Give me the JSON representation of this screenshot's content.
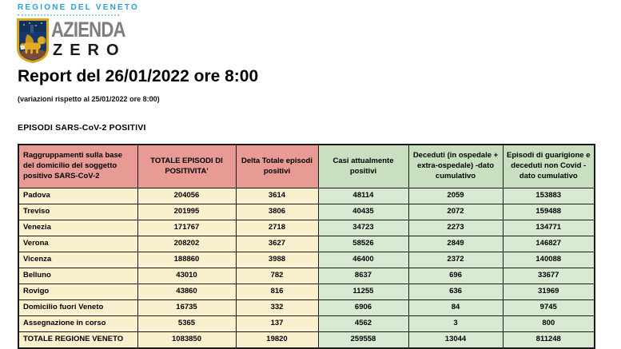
{
  "branding": {
    "region_label": "REGIONE DEL VENETO",
    "org_name_top": "AZIENDA",
    "org_name_bottom": "ZERO",
    "colors": {
      "region_blue": "#2d9fd8",
      "dot_blue": "#9cc9e2",
      "azienda_gray": "#7e7e7e",
      "zero_black": "#1a1a1a",
      "crest_blue": "#17386a",
      "crest_gold": "#dca31d"
    }
  },
  "report": {
    "title": "Report del 26/01/2022 ore 8:00",
    "subtitle": "(variazioni rispetto al 25/01/2022 ore 8:00)",
    "section_title": "EPISODI SARS-CoV-2 POSITIVI"
  },
  "table": {
    "colors": {
      "header_pink": "#e89b95",
      "header_green": "#c9e0c0",
      "cell_cream": "#fbf0cd",
      "cell_green": "#d9ead3",
      "border": "#1a1a1a"
    },
    "columns": [
      {
        "label": "Raggruppamenti sulla base del domicilio del soggetto positivo SARS-CoV-2",
        "group": "pink"
      },
      {
        "label": "TOTALE EPISODI DI POSITIVITA'",
        "group": "pink"
      },
      {
        "label": "Delta Totale episodi positivi",
        "group": "pink"
      },
      {
        "label": "Casi attualmente positivi",
        "group": "green"
      },
      {
        "label": "Deceduti (in ospedale + extra-ospedale) -dato cumulativo",
        "group": "green"
      },
      {
        "label": "Episodi di guarigione e deceduti non Covid - dato cumulativo",
        "group": "green"
      }
    ],
    "rows": [
      {
        "label": "Padova",
        "values": [
          "204056",
          "3614",
          "48114",
          "2059",
          "153883"
        ],
        "is_total": false
      },
      {
        "label": "Treviso",
        "values": [
          "201995",
          "3806",
          "40435",
          "2072",
          "159488"
        ],
        "is_total": false
      },
      {
        "label": "Venezia",
        "values": [
          "171767",
          "2718",
          "34723",
          "2273",
          "134771"
        ],
        "is_total": false
      },
      {
        "label": "Verona",
        "values": [
          "208202",
          "3627",
          "58526",
          "2849",
          "146827"
        ],
        "is_total": false
      },
      {
        "label": "Vicenza",
        "values": [
          "188860",
          "3988",
          "46400",
          "2372",
          "140088"
        ],
        "is_total": false
      },
      {
        "label": "Belluno",
        "values": [
          "43010",
          "782",
          "8637",
          "696",
          "33677"
        ],
        "is_total": false
      },
      {
        "label": "Rovigo",
        "values": [
          "43860",
          "816",
          "11255",
          "636",
          "31969"
        ],
        "is_total": false
      },
      {
        "label": "Domicilio fuori Veneto",
        "values": [
          "16735",
          "332",
          "6906",
          "84",
          "9745"
        ],
        "is_total": false
      },
      {
        "label": "Assegnazione in corso",
        "values": [
          "5365",
          "137",
          "4562",
          "3",
          "800"
        ],
        "is_total": false
      },
      {
        "label": "TOTALE REGIONE VENETO",
        "values": [
          "1083850",
          "19820",
          "259558",
          "13044",
          "811248"
        ],
        "is_total": true
      }
    ]
  }
}
